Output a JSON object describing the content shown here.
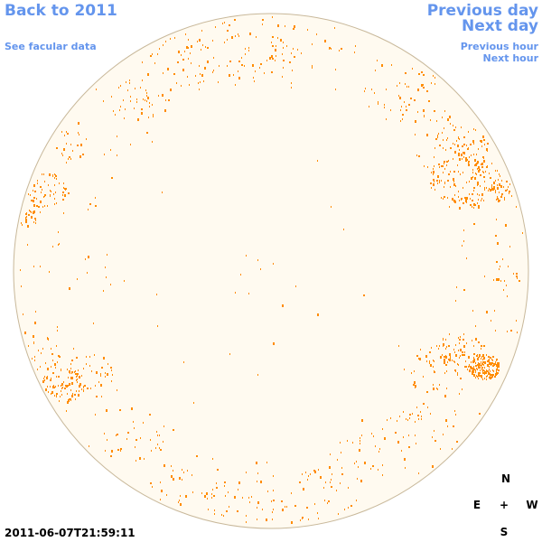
{
  "nav": {
    "back_label": "Back to 2011",
    "facular_label": "See facular data",
    "prev_day_label": "Previous day",
    "next_day_label": "Next day",
    "prev_hour_label": "Previous hour",
    "next_hour_label": "Next hour"
  },
  "compass": {
    "north": "N",
    "east": "E",
    "center": "+",
    "west": "W",
    "south": "S"
  },
  "timestamp": "2011-06-07T21:59:11",
  "colors": {
    "link": "#6495ed",
    "disk_fill": "#fffaf0",
    "disk_edge": "#c8b89a",
    "facula": "#ff8c00"
  }
}
